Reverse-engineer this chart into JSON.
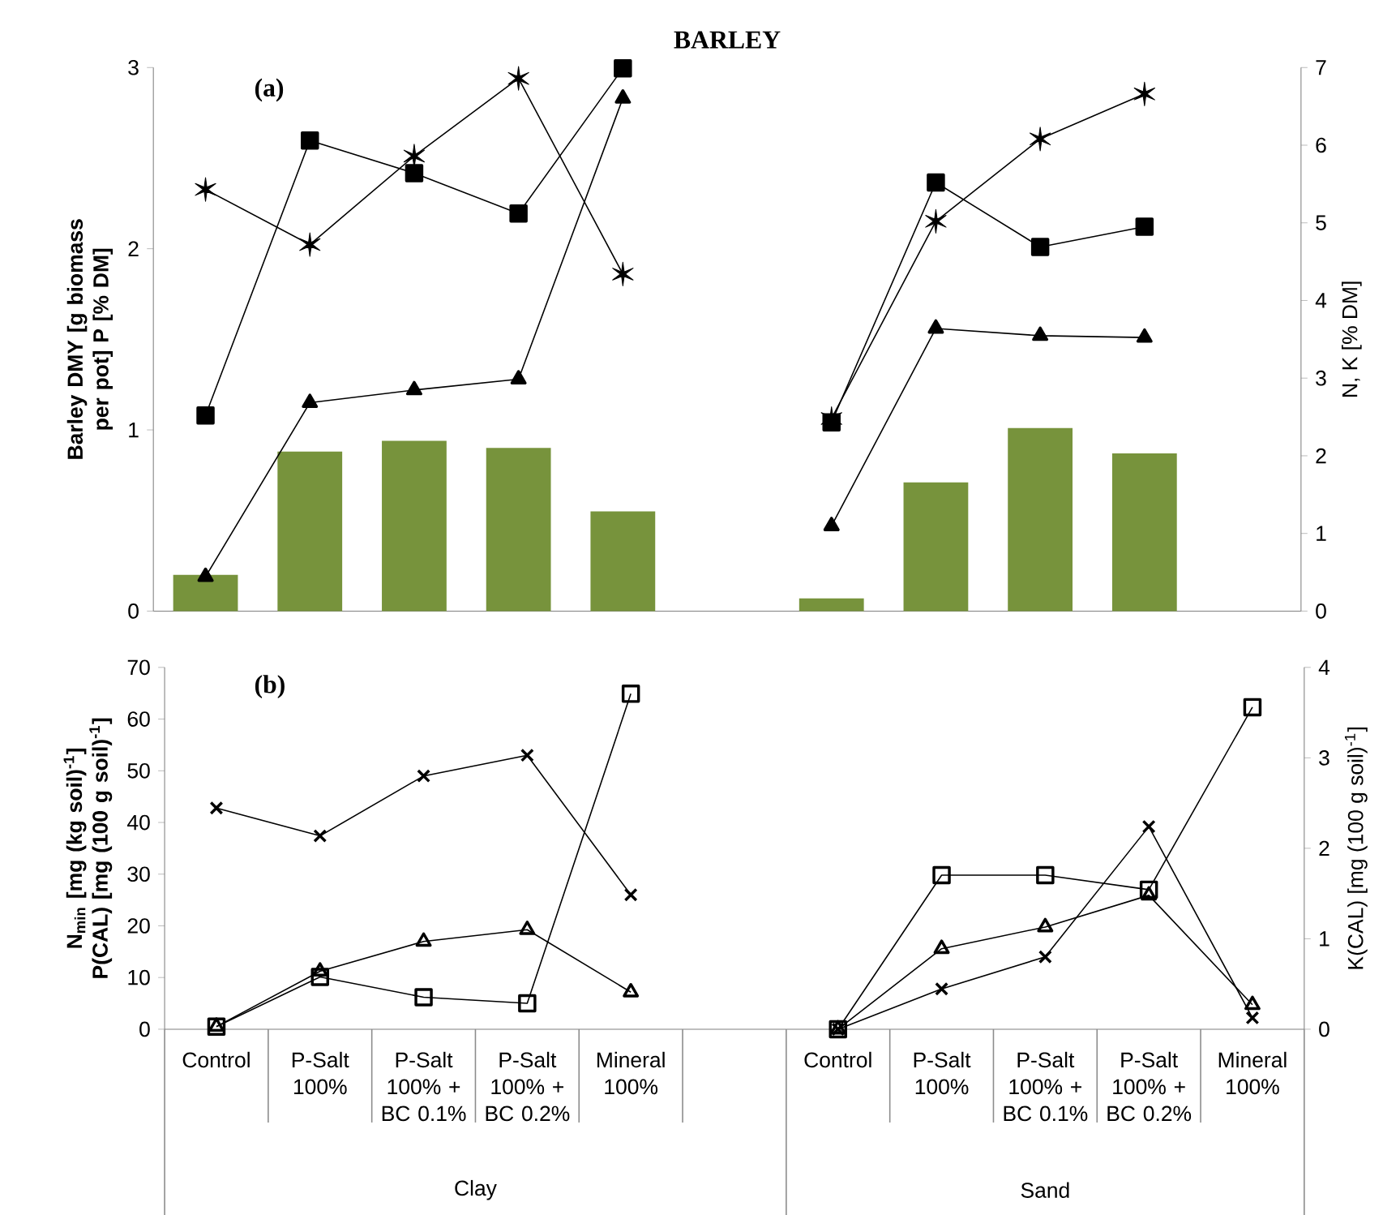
{
  "chart_data": [
    {
      "type": "bar",
      "title": "BARLEY",
      "subtitle": "(a)",
      "ylabel": "Barley DMY [g biomass per pot] P [% DM]",
      "y2label": "N, K [% DM]",
      "categories": [
        null,
        null,
        null,
        null,
        null,
        null,
        null,
        null,
        null,
        null,
        null
      ],
      "ylim": [
        0,
        3
      ],
      "yticks": [
        0,
        1,
        2,
        3
      ],
      "y2lim": [
        0,
        7
      ],
      "y2ticks": [
        0,
        1,
        2,
        3,
        4,
        5,
        6,
        7
      ],
      "tick_labels": "y",
      "grid": false,
      "line_style": "solid",
      "series": [
        {
          "color": "#77933c",
          "values": [
            0.2,
            0.88,
            0.94,
            0.9,
            0.55,
            null,
            0.07,
            0.71,
            1.01,
            0.87,
            null
          ]
        },
        {
          "type": "line",
          "color": "#000000",
          "marker": "triangle",
          "values": [
            0.19,
            1.15,
            1.22,
            1.28,
            2.83,
            null,
            0.47,
            1.56,
            1.52,
            1.51,
            null
          ]
        },
        {
          "type": "line",
          "color": "#000000",
          "marker": "square",
          "axis": "y2",
          "values": [
            2.52,
            6.06,
            5.64,
            5.12,
            6.99,
            null,
            2.43,
            5.52,
            4.69,
            4.95,
            null
          ]
        },
        {
          "type": "line",
          "color": "#000000",
          "marker": "cross",
          "axis": "y2",
          "values": [
            5.43,
            4.72,
            5.86,
            6.86,
            4.34,
            null,
            2.48,
            5.02,
            6.08,
            6.66,
            null
          ]
        }
      ]
    },
    {
      "type": "line",
      "title": "(b)",
      "ylabel": "N$_{min}$ [mg (kg soil)$^{-1}$] P(CAL) [mg (100 g soil)$^{-1}$]",
      "y2label": "K(CAL) [mg (100 g soil)$^{-1}$]",
      "categories": [
        "Control",
        "P-Salt 100%",
        "P-Salt 100% + BC 0.1%",
        "P-Salt 100% + BC 0.2%",
        "Mineral 100%",
        null,
        "Control",
        "P-Salt 100%",
        "P-Salt 100% + BC 0.1%",
        "P-Salt 100% + BC 0.2%",
        "Mineral 100%"
      ],
      "ylim": [
        0,
        70
      ],
      "yticks": [
        0,
        10,
        20,
        30,
        40,
        50,
        60,
        70
      ],
      "y2lim": [
        0,
        4
      ],
      "y2ticks": [
        0,
        1,
        2,
        3,
        4
      ],
      "grid": false,
      "line_style": "solid",
      "annotations": [
        "Clay",
        "Sand"
      ],
      "series": [
        {
          "color": "#000000",
          "marker": "cross",
          "values": [
            42.8,
            37.4,
            49,
            53,
            26,
            null,
            0,
            7.8,
            14.0,
            39.2,
            2.2
          ]
        },
        {
          "color": "#000000",
          "marker": "square",
          "values": [
            0.5,
            10.1,
            6.2,
            5.0,
            64.9,
            null,
            0,
            29.8,
            29.8,
            27.0,
            62.3
          ]
        },
        {
          "color": "#000000",
          "marker": "triangle",
          "axis": "y2",
          "values": [
            0.03,
            0.64,
            0.97,
            1.1,
            0.41,
            null,
            0,
            0.89,
            1.13,
            1.48,
            0.27
          ]
        }
      ]
    }
  ]
}
